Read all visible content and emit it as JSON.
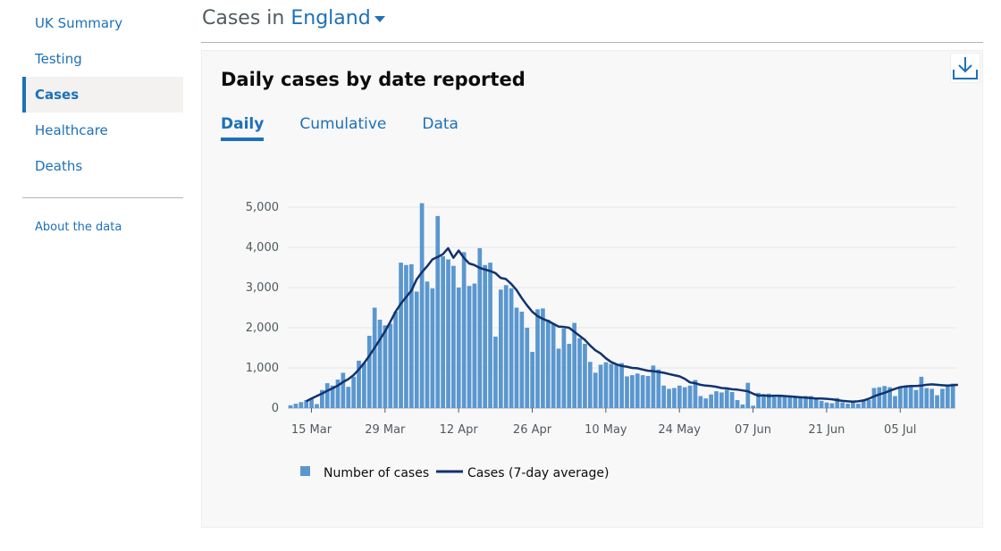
{
  "sidebar": {
    "items": [
      {
        "label": "UK Summary",
        "active": false
      },
      {
        "label": "Testing",
        "active": false
      },
      {
        "label": "Cases",
        "active": true
      },
      {
        "label": "Healthcare",
        "active": false
      },
      {
        "label": "Deaths",
        "active": false
      }
    ],
    "about": "About the data"
  },
  "header": {
    "prefix": "Cases in",
    "area": "England"
  },
  "card": {
    "title": "Daily cases by date reported",
    "tabs": [
      {
        "label": "Daily",
        "active": true
      },
      {
        "label": "Cumulative",
        "active": false
      },
      {
        "label": "Data",
        "active": false
      }
    ],
    "download_icon": "download-icon"
  },
  "chart_data": {
    "type": "bar",
    "y_ticks": [
      0,
      1000,
      2000,
      3000,
      4000,
      5000
    ],
    "y_tick_labels": [
      "0",
      "1,000",
      "2,000",
      "3,000",
      "4,000",
      "5,000"
    ],
    "ylim": [
      0,
      5000
    ],
    "x_tick_labels": [
      "15 Mar",
      "29 Mar",
      "12 Apr",
      "26 Apr",
      "10 May",
      "24 May",
      "07 Jun",
      "21 Jun",
      "05 Jul"
    ],
    "x_tick_index": [
      4,
      18,
      32,
      46,
      60,
      74,
      88,
      102,
      116
    ],
    "grid": true,
    "colors": {
      "bars": "#5a97cf",
      "line": "#12326e",
      "grid": "#e6e6e6"
    },
    "legend": {
      "placement": "bottom",
      "items": [
        {
          "label": "Number of cases",
          "type": "bar"
        },
        {
          "label": "Cases (7-day average)",
          "type": "line"
        }
      ]
    },
    "series": [
      {
        "name": "Number of cases",
        "values": [
          70,
          110,
          150,
          200,
          230,
          100,
          450,
          620,
          560,
          710,
          880,
          530,
          780,
          1180,
          1120,
          1800,
          2500,
          2200,
          2060,
          2100,
          2400,
          3620,
          3560,
          3580,
          2900,
          5100,
          3150,
          2980,
          4780,
          3780,
          3700,
          3540,
          3000,
          3880,
          3040,
          3100,
          3980,
          3560,
          3620,
          1780,
          2950,
          3060,
          2980,
          2500,
          2400,
          2000,
          1400,
          2460,
          2480,
          2200,
          2100,
          1480,
          1980,
          1600,
          2120,
          1740,
          1600,
          1150,
          880,
          1080,
          1140,
          1100,
          1090,
          1120,
          790,
          820,
          860,
          820,
          800,
          1060,
          960,
          560,
          480,
          500,
          560,
          520,
          560,
          700,
          300,
          240,
          340,
          420,
          390,
          460,
          400,
          200,
          90,
          630,
          60,
          380,
          340,
          360,
          280,
          300,
          280,
          290,
          270,
          260,
          300,
          300,
          240,
          180,
          140,
          120,
          250,
          140,
          110,
          140,
          110,
          180,
          200,
          500,
          520,
          550,
          520,
          300,
          520,
          550,
          550,
          450,
          780,
          500,
          480,
          320,
          480,
          580,
          610
        ]
      },
      {
        "name": "Cases (7-day average)",
        "x_index_start": 3,
        "values": [
          170,
          240,
          300,
          360,
          430,
          490,
          560,
          650,
          720,
          820,
          960,
          1120,
          1300,
          1500,
          1700,
          1910,
          2150,
          2400,
          2600,
          2760,
          2920,
          3200,
          3380,
          3530,
          3700,
          3760,
          3830,
          3980,
          3740,
          3920,
          3740,
          3600,
          3560,
          3490,
          3450,
          3410,
          3360,
          3240,
          3210,
          3090,
          2940,
          2740,
          2560,
          2400,
          2290,
          2220,
          2170,
          2100,
          2030,
          2020,
          2000,
          1900,
          1800,
          1700,
          1560,
          1440,
          1360,
          1240,
          1150,
          1090,
          1050,
          1030,
          1000,
          990,
          960,
          930,
          920,
          900,
          880,
          850,
          820,
          790,
          730,
          640,
          620,
          580,
          560,
          550,
          530,
          500,
          490,
          470,
          460,
          440,
          420,
          360,
          310,
          320,
          300,
          310,
          310,
          300,
          290,
          280,
          270,
          260,
          250,
          240,
          240,
          230,
          220,
          200,
          180,
          170,
          160,
          170,
          190,
          230,
          290,
          340,
          380,
          430,
          480,
          520,
          540,
          550,
          550,
          560,
          580,
          590,
          580,
          570,
          560,
          570,
          580
        ]
      }
    ]
  }
}
